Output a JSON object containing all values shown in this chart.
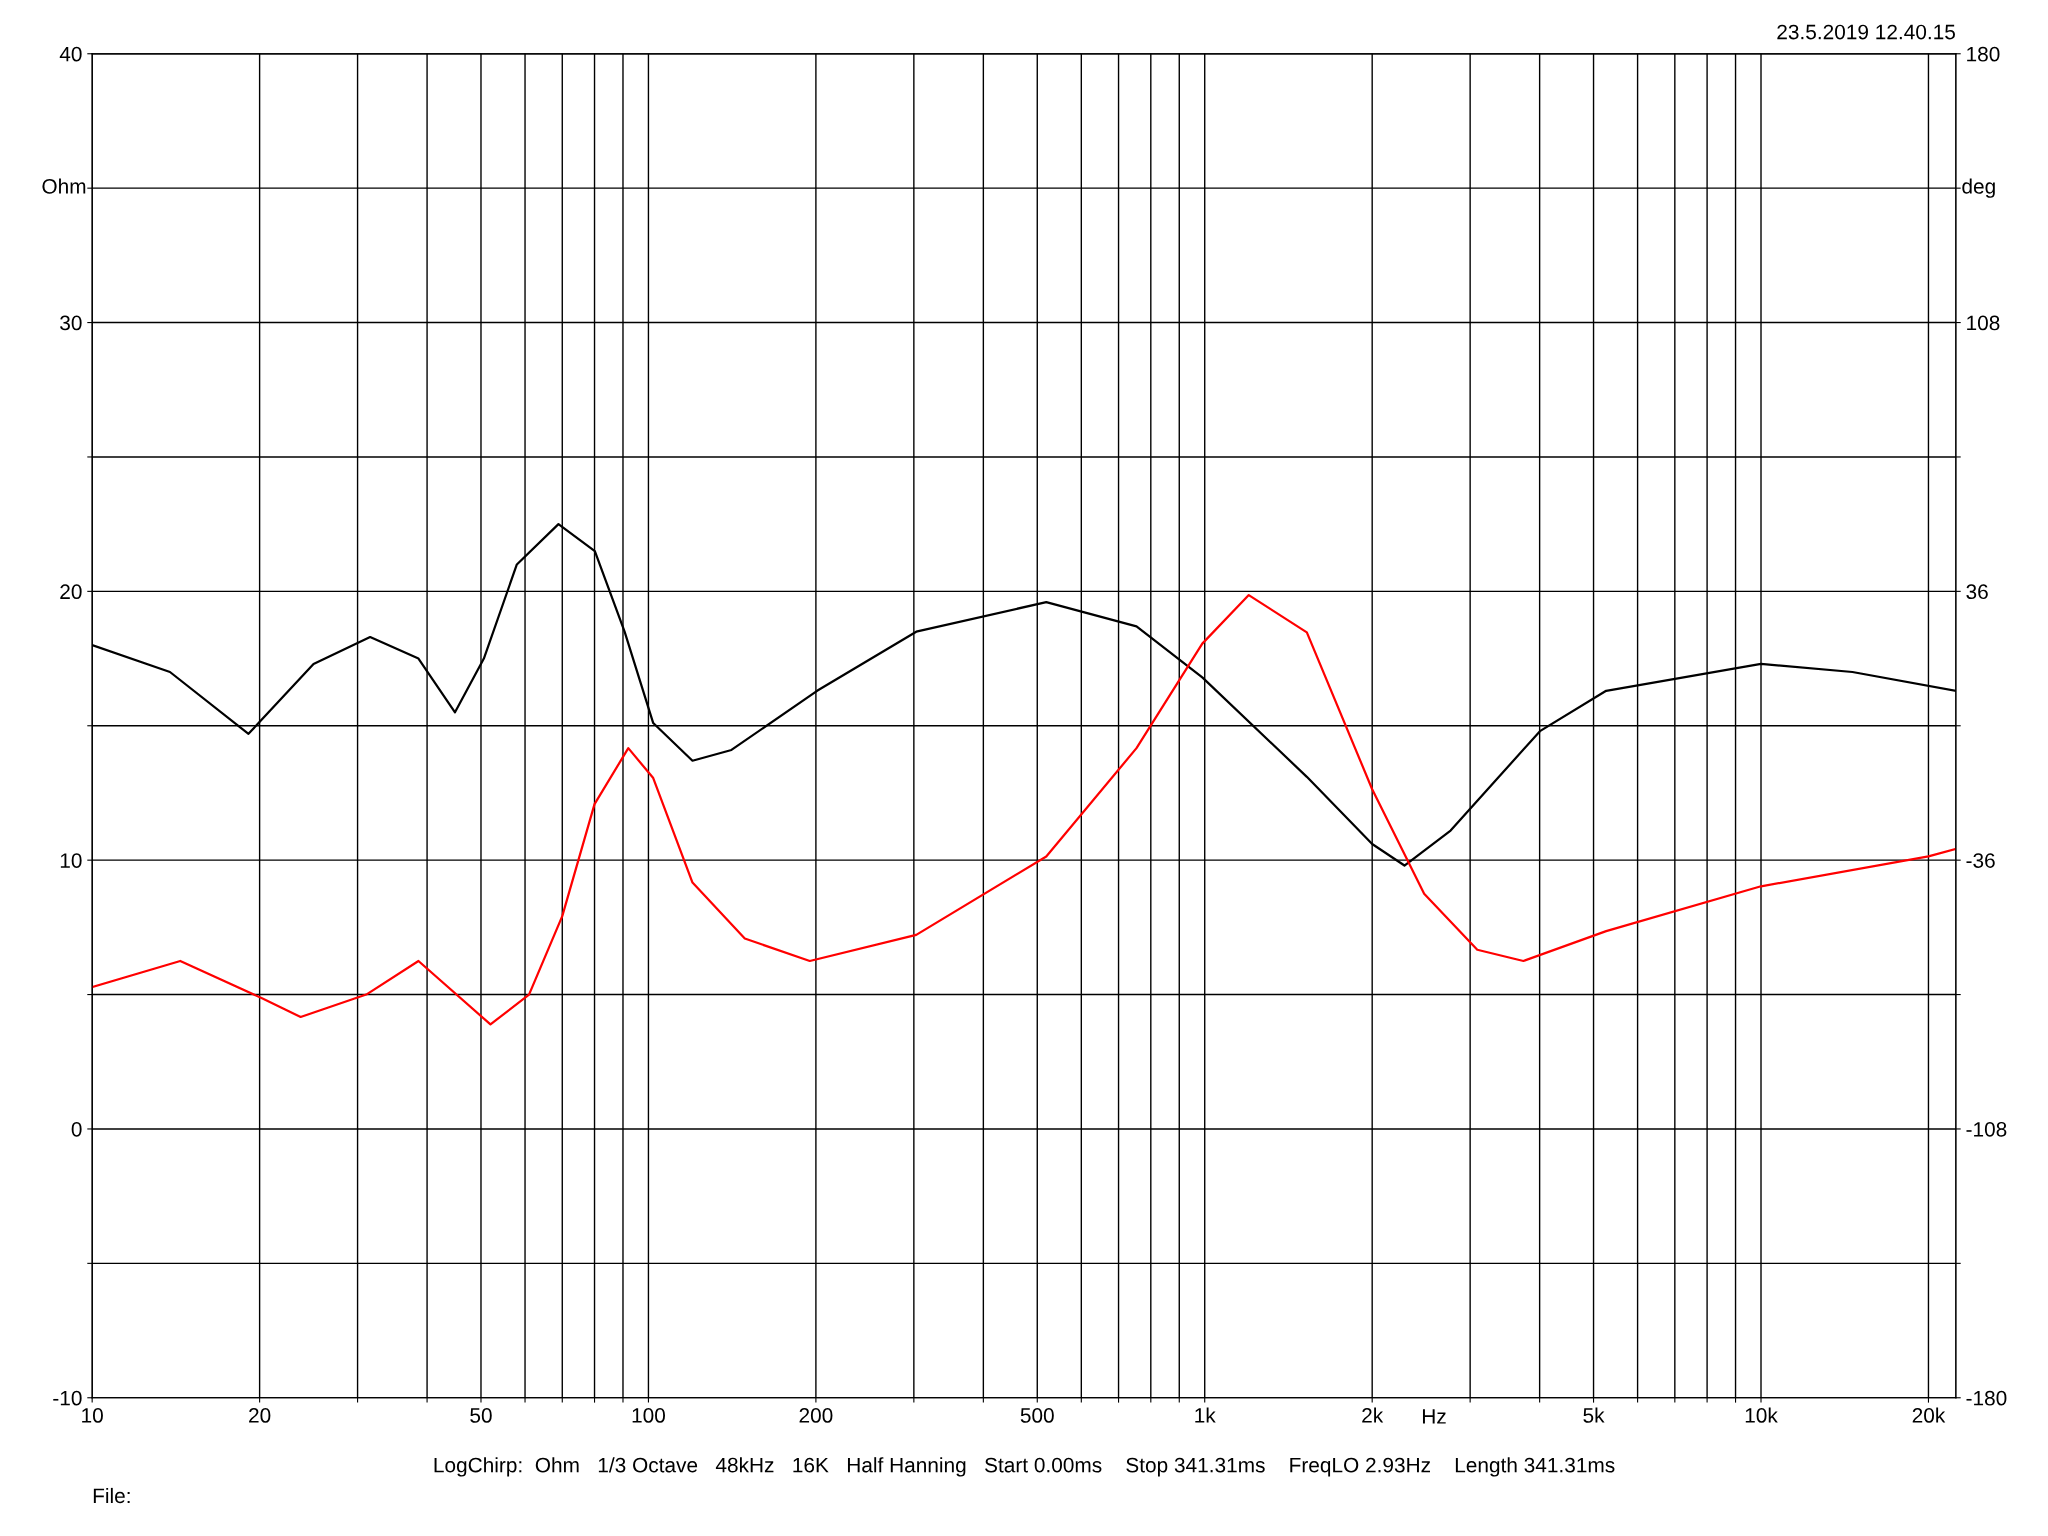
{
  "chart_data": {
    "type": "line",
    "xlabel": "Hz",
    "ylabel": "Ohm",
    "y2label": "deg",
    "annotations": [
      "23.5.2019 12.40.15",
      "LogChirp:  Ohm   1/3 Octave   48kHz   16K   Half Hanning   Start 0.00ms    Stop 341.31ms    FreqLO 2.93Hz    Length 341.31ms",
      "File:"
    ],
    "log": "x",
    "grid": true,
    "line_style": "solid",
    "marker": "none",
    "xlim": [
      10,
      22400
    ],
    "ylim": [
      -10,
      40
    ],
    "y2lim": [
      -180,
      180
    ],
    "xticks": [
      10,
      20,
      {
        "value": 30,
        "label": null
      },
      {
        "value": 40,
        "label": null
      },
      50,
      {
        "value": 60,
        "label": null
      },
      {
        "value": 70,
        "label": null
      },
      {
        "value": 80,
        "label": null
      },
      {
        "value": 90,
        "label": null
      },
      100,
      200,
      {
        "value": 300,
        "label": null
      },
      {
        "value": 400,
        "label": null
      },
      500,
      {
        "value": 600,
        "label": null
      },
      {
        "value": 700,
        "label": null
      },
      {
        "value": 800,
        "label": null
      },
      {
        "value": 900,
        "label": null
      },
      {
        "value": 1000,
        "label": "1k"
      },
      {
        "value": 2000,
        "label": "2k"
      },
      {
        "value": 3000,
        "label": null
      },
      {
        "value": 4000,
        "label": null
      },
      {
        "value": 5000,
        "label": "5k"
      },
      {
        "value": 6000,
        "label": null
      },
      {
        "value": 7000,
        "label": null
      },
      {
        "value": 8000,
        "label": null
      },
      {
        "value": 9000,
        "label": null
      },
      {
        "value": 10000,
        "label": "10k"
      },
      {
        "value": 20000,
        "label": "20k"
      }
    ],
    "yticks": [
      -10,
      {
        "value": -5,
        "label": null
      },
      0,
      {
        "value": 5,
        "label": null
      },
      10,
      {
        "value": 15,
        "label": null
      },
      20,
      {
        "value": 25,
        "label": null
      },
      30,
      {
        "value": 35,
        "label": null
      },
      40
    ],
    "y2ticks": [
      -180,
      {
        "value": -144,
        "label": null
      },
      -108,
      {
        "value": -72,
        "label": null
      },
      -36,
      {
        "value": 0,
        "label": null
      },
      36,
      {
        "value": 72,
        "label": null
      },
      108,
      {
        "value": 144,
        "label": null
      },
      180
    ],
    "series": [
      {
        "color": "#000000",
        "x": [
          10,
          13.8,
          19.1,
          25,
          31.6,
          38.6,
          44.9,
          50.6,
          58,
          68.9,
          80.1,
          90.6,
          102,
          120,
          141,
          201,
          303,
          519,
          754,
          990,
          1526,
          2000,
          2286,
          2767,
          4005,
          5268,
          10000,
          14600,
          22387
        ],
        "values": [
          18.0,
          17.0,
          14.7,
          17.3,
          18.3,
          17.5,
          15.5,
          17.5,
          21.0,
          22.5,
          21.5,
          18.5,
          15.1,
          13.7,
          14.1,
          16.3,
          18.5,
          19.6,
          18.7,
          16.8,
          13.1,
          10.6,
          9.8,
          11.1,
          14.8,
          16.3,
          17.3,
          17.0,
          16.3
        ]
      },
      {
        "color": "#ff0000",
        "axis": "y2",
        "x": [
          10,
          14.4,
          20.2,
          23.7,
          31.1,
          38.6,
          52,
          61,
          70,
          80,
          92,
          102,
          120,
          149,
          195,
          303,
          519,
          754,
          990,
          1200,
          1526,
          2000,
          2480,
          3090,
          3740,
          5268,
          10000,
          20000,
          22387
        ],
        "values": [
          -70,
          -63,
          -73,
          -78,
          -72,
          -63,
          -80,
          -72,
          -51,
          -21,
          -6,
          -14,
          -42,
          -57,
          -63,
          -56,
          -35,
          -6,
          22,
          35,
          25,
          -17,
          -45,
          -60,
          -63,
          -55,
          -43,
          -35,
          -33
        ]
      }
    ]
  }
}
